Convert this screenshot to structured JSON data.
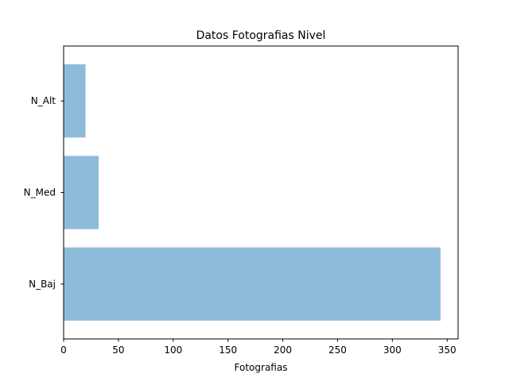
{
  "chart_data": {
    "type": "bar",
    "orientation": "horizontal",
    "title": "Datos Fotografias Nivel",
    "xlabel": "Fotografias",
    "ylabel": "",
    "categories": [
      "N_Baj",
      "N_Med",
      "N_Alt"
    ],
    "values": [
      344,
      32,
      20
    ],
    "xlim": [
      0,
      360
    ],
    "xticks": [
      0,
      50,
      100,
      150,
      200,
      250,
      300,
      350
    ],
    "bar_color": "#8fbbda",
    "grid": false,
    "legend": "none"
  }
}
